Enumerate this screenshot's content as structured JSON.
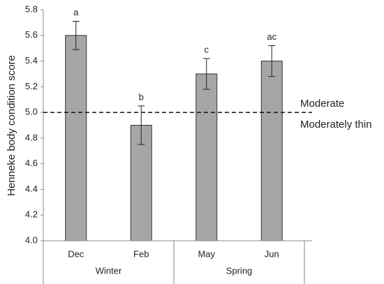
{
  "chart_data": {
    "type": "bar",
    "y_label": "Henneke body condition score",
    "categories": [
      "Dec",
      "Feb",
      "May",
      "Jun"
    ],
    "values": [
      5.6,
      4.9,
      5.3,
      5.4
    ],
    "errors": [
      0.11,
      0.15,
      0.12,
      0.12
    ],
    "annotations": [
      "a",
      "b",
      "c",
      "ac"
    ],
    "groups": [
      {
        "name": "Winter",
        "members": [
          "Dec",
          "Feb"
        ]
      },
      {
        "name": "Spring",
        "members": [
          "May",
          "Jun"
        ]
      }
    ],
    "color": "#a6a6a6",
    "ylim": [
      4.0,
      5.8
    ],
    "yticks": [
      {
        "value": 4.0,
        "label": "4.0"
      },
      4.2,
      4.4,
      4.6,
      4.8,
      {
        "value": 5.0,
        "label": "5.0"
      },
      5.2,
      5.4,
      5.6,
      5.8
    ],
    "reference_line": {
      "value": 5.0,
      "labels": [
        "Moderate",
        "Moderately thin"
      ]
    }
  }
}
